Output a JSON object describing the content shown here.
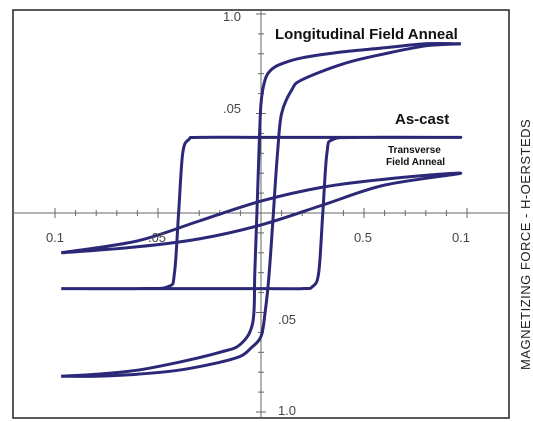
{
  "chart_data": {
    "type": "line",
    "xlim": [
      -1,
      1
    ],
    "ylim": [
      -1,
      1
    ],
    "grid": false,
    "x_tick_labels": [
      "0.1",
      ".05",
      "0.5",
      "0.1"
    ],
    "y_tick_labels": [
      "1.0",
      ".05",
      ".05",
      "1.0"
    ],
    "side_label": "MAGNETIZING FORCE - H-OERSTEDS",
    "annotations": {
      "longitudinal": "Longitudinal Field Anneal",
      "as_cast": "As-cast",
      "transverse_line1": "Transverse",
      "transverse_line2": "Field Anneal"
    },
    "series": [
      {
        "curve": "longitudinal-upper",
        "color": "#2c2878",
        "x": [
          -0.97,
          -0.8,
          -0.6,
          -0.4,
          -0.2,
          -0.1,
          -0.04,
          -0.03,
          -0.02,
          -0.01,
          0.0,
          0.02,
          0.05,
          0.1,
          0.2,
          0.4,
          0.6,
          0.8,
          0.97
        ],
        "y": [
          -0.82,
          -0.81,
          -0.79,
          -0.75,
          -0.7,
          -0.66,
          -0.55,
          -0.3,
          0.0,
          0.3,
          0.55,
          0.67,
          0.72,
          0.75,
          0.78,
          0.81,
          0.83,
          0.85,
          0.85
        ]
      },
      {
        "curve": "longitudinal-lower",
        "color": "#2c2878",
        "x": [
          -0.97,
          -0.8,
          -0.6,
          -0.4,
          -0.2,
          -0.1,
          -0.05,
          0.0,
          0.02,
          0.04,
          0.06,
          0.08,
          0.1,
          0.15,
          0.2,
          0.4,
          0.6,
          0.8,
          0.97
        ],
        "y": [
          -0.82,
          -0.82,
          -0.81,
          -0.79,
          -0.75,
          -0.72,
          -0.68,
          -0.62,
          -0.5,
          -0.3,
          0.0,
          0.3,
          0.5,
          0.62,
          0.67,
          0.75,
          0.8,
          0.84,
          0.85
        ]
      },
      {
        "curve": "as-cast",
        "color": "#2c2878",
        "x": [
          -0.97,
          -0.6,
          -0.45,
          -0.42,
          -0.4,
          -0.38,
          -0.35,
          -0.3,
          0.0,
          0.5,
          0.97,
          0.5,
          0.35,
          0.32,
          0.3,
          0.28,
          0.25,
          0.2,
          0.0,
          -0.6,
          -0.97
        ],
        "y": [
          -0.38,
          -0.38,
          -0.37,
          -0.3,
          0.0,
          0.3,
          0.37,
          0.38,
          0.38,
          0.38,
          0.38,
          0.38,
          0.37,
          0.3,
          0.0,
          -0.3,
          -0.37,
          -0.38,
          -0.38,
          -0.38,
          -0.38
        ]
      },
      {
        "curve": "transverse-field-anneal",
        "color": "#2c2878",
        "x": [
          -0.97,
          -0.6,
          -0.3,
          0.0,
          0.3,
          0.6,
          0.97,
          0.6,
          0.3,
          0.0,
          -0.3,
          -0.6,
          -0.97
        ],
        "y": [
          -0.2,
          -0.14,
          -0.04,
          0.06,
          0.13,
          0.17,
          0.2,
          0.14,
          0.04,
          -0.06,
          -0.13,
          -0.17,
          -0.2
        ]
      }
    ]
  }
}
